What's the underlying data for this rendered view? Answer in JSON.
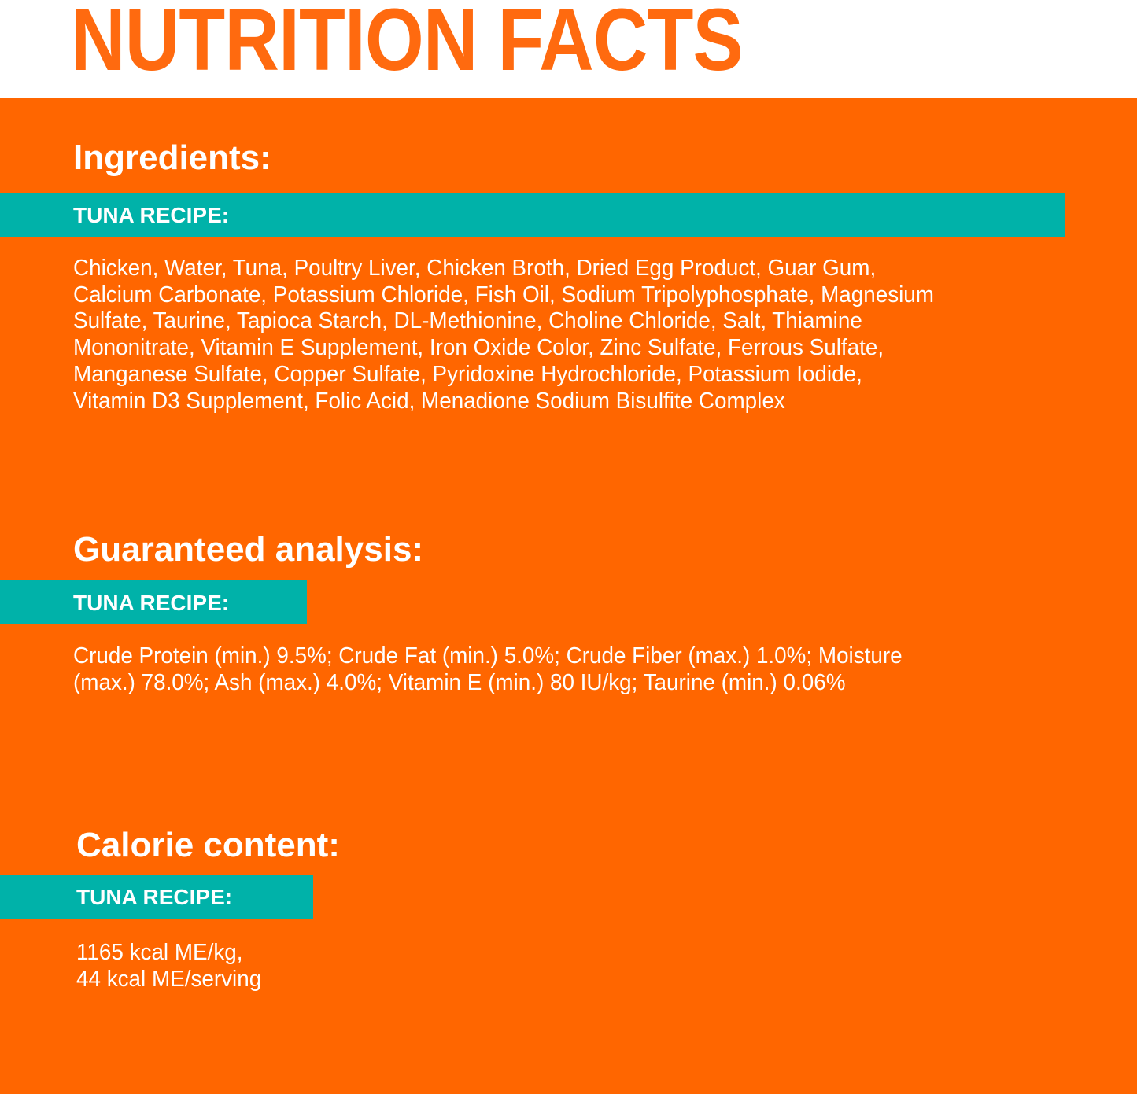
{
  "title": "NUTRITION FACTS",
  "colors": {
    "orange": "#FF6600",
    "teal": "#00B2A9",
    "title": "#FF6A0F"
  },
  "ingredients": {
    "heading": "Ingredients:",
    "band": "TUNA RECIPE:",
    "lines": [
      "Chicken, Water, Tuna, Poultry Liver, Chicken Broth, Dried Egg Product, Guar Gum,",
      "Calcium Carbonate, Potassium Chloride, Fish Oil, Sodium Tripolyphosphate, Magnesium",
      "Sulfate, Taurine, Tapioca Starch, DL-Methionine, Choline Chloride, Salt, Thiamine",
      "Mononitrate, Vitamin E Supplement, Iron Oxide Color, Zinc Sulfate, Ferrous Sulfate,",
      "Manganese Sulfate, Copper Sulfate, Pyridoxine Hydrochloride, Potassium Iodide,",
      "Vitamin D3 Supplement, Folic Acid, Menadione Sodium Bisulfite Complex"
    ]
  },
  "analysis": {
    "heading": "Guaranteed analysis:",
    "band": "TUNA RECIPE:",
    "lines": [
      "Crude Protein (min.) 9.5%; Crude Fat (min.) 5.0%; Crude Fiber (max.) 1.0%;  Moisture",
      "(max.) 78.0%; Ash (max.) 4.0%; Vitamin E (min.) 80 IU/kg; Taurine (min.) 0.06%"
    ]
  },
  "calories": {
    "heading": "Calorie content:",
    "band": "TUNA RECIPE:",
    "lines": [
      "1165 kcal ME/kg,",
      "44 kcal ME/serving"
    ]
  }
}
